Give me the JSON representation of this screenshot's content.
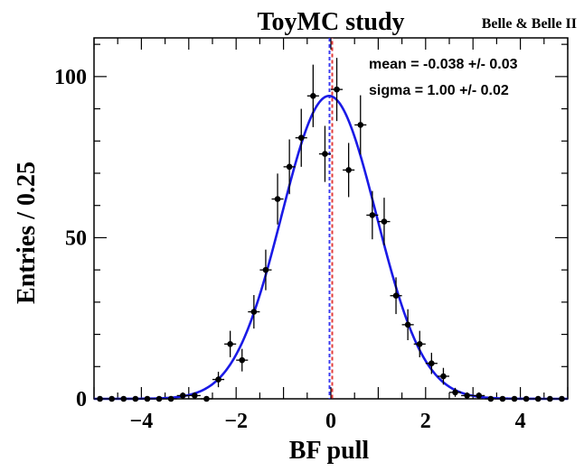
{
  "chart_data": {
    "type": "scatter",
    "title": "ToyMC study",
    "subtitle": "Belle & Belle II",
    "xlabel": "BF pull",
    "ylabel": "Entries / 0.25",
    "xlim": [
      -5,
      5
    ],
    "ylim": [
      0,
      112
    ],
    "x_ticks": [
      -4,
      -2,
      0,
      2,
      4
    ],
    "x_tick_labels": [
      "−4",
      "−2",
      "0",
      "2",
      "4"
    ],
    "y_ticks": [
      0,
      50,
      100
    ],
    "y_tick_labels": [
      "0",
      "50",
      "100"
    ],
    "grid": false,
    "annotations": {
      "mean": "mean = -0.038 +/- 0.03",
      "sigma": "sigma =  1.00 +/- 0.02"
    },
    "colors": {
      "fit_curve": "#1a1ae6",
      "vline_blue": "#3a3af0",
      "vline_red": "#e23b3b",
      "points": "#000000"
    },
    "series": [
      {
        "values_x": [
          -4.875,
          -4.625,
          -4.375,
          -4.125,
          -3.875,
          -3.625,
          -3.375,
          -3.125,
          -2.875,
          -2.625,
          -2.375,
          -2.125,
          -1.875,
          -1.625,
          -1.375,
          -1.125,
          -0.875,
          -0.625,
          -0.375,
          -0.125,
          0.125,
          0.375,
          0.625,
          0.875,
          1.125,
          1.375,
          1.625,
          1.875,
          2.125,
          2.375,
          2.625,
          2.875,
          3.125,
          3.375,
          3.625,
          3.875,
          4.125,
          4.375,
          4.625,
          4.875
        ],
        "values_y": [
          0,
          0,
          0,
          0,
          0,
          0,
          0,
          1,
          1,
          0,
          6,
          17,
          12,
          27,
          40,
          62,
          72,
          81,
          94,
          76,
          96,
          71,
          85,
          57,
          55,
          32,
          23,
          17,
          11,
          7,
          2,
          1,
          1,
          0,
          0,
          0,
          0,
          0,
          0,
          0
        ],
        "errors": [
          0,
          0,
          0,
          0,
          0,
          0,
          0,
          1,
          1,
          0,
          2.4,
          4.1,
          3.5,
          5.2,
          6.3,
          7.9,
          8.5,
          9.0,
          9.7,
          8.7,
          9.8,
          8.4,
          9.2,
          7.5,
          7.4,
          5.7,
          4.8,
          4.1,
          3.3,
          2.6,
          1.4,
          1,
          1,
          0,
          0,
          0,
          0,
          0,
          0,
          0
        ]
      }
    ],
    "fit": {
      "amplitude": 94,
      "mean": -0.038,
      "sigma": 1.0
    },
    "reference_lines_x": [
      0
    ]
  }
}
